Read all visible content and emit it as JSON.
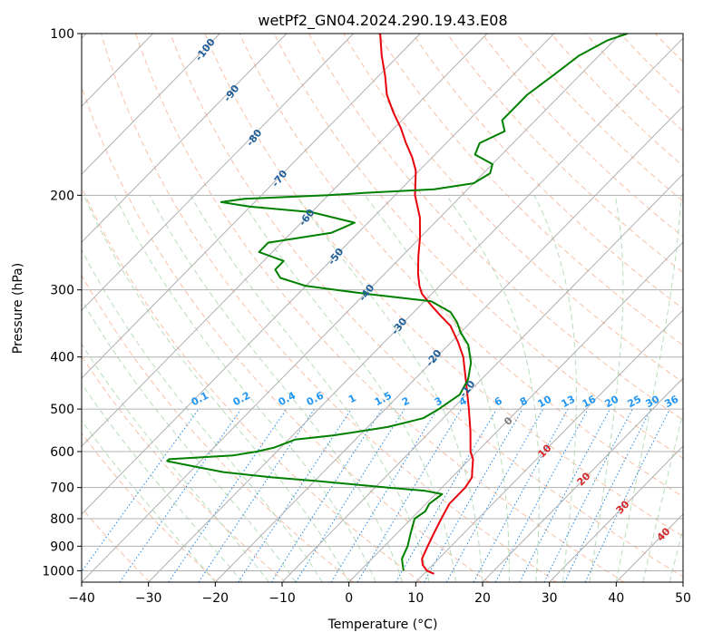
{
  "chart_data": {
    "type": "line",
    "title": "wetPf2_GN04.2024.290.19.43.E08",
    "xlabel": "Temperature (°C)",
    "ylabel": "Pressure (hPa)",
    "xlim": [
      -40,
      50
    ],
    "ylim": [
      1050,
      100
    ],
    "y_scale": "log",
    "grid": true,
    "skew_degrees_per_log10_unit": 79,
    "x_ticks": [
      -40,
      -30,
      -20,
      -10,
      0,
      10,
      20,
      30,
      40,
      50
    ],
    "x_tick_labels": [
      "−40",
      "−30",
      "−20",
      "−10",
      "0",
      "10",
      "20",
      "30",
      "40",
      "50"
    ],
    "y_ticks": [
      1000,
      900,
      800,
      700,
      600,
      500,
      400,
      300,
      200,
      100
    ],
    "y_tick_labels": [
      "1000",
      "900",
      "800",
      "700",
      "600",
      "500",
      "400",
      "300",
      "200",
      "100"
    ],
    "series": [
      {
        "role": "temperature",
        "color": "#e8000b",
        "points": [
          [
            1013,
            11.5
          ],
          [
            1000,
            10.0
          ],
          [
            975,
            8.5
          ],
          [
            950,
            7.5
          ],
          [
            900,
            6.5
          ],
          [
            850,
            5.5
          ],
          [
            800,
            4.5
          ],
          [
            750,
            3.5
          ],
          [
            720,
            3.5
          ],
          [
            700,
            3.5
          ],
          [
            670,
            3.0
          ],
          [
            650,
            2.0
          ],
          [
            620,
            0.5
          ],
          [
            600,
            -1.0
          ],
          [
            550,
            -4.0
          ],
          [
            500,
            -7.5
          ],
          [
            450,
            -11.5
          ],
          [
            400,
            -16.0
          ],
          [
            375,
            -19.0
          ],
          [
            350,
            -22.5
          ],
          [
            335,
            -25.5
          ],
          [
            320,
            -28.5
          ],
          [
            305,
            -31.5
          ],
          [
            295,
            -33.0
          ],
          [
            280,
            -35.0
          ],
          [
            260,
            -37.5
          ],
          [
            240,
            -40.0
          ],
          [
            220,
            -43.0
          ],
          [
            200,
            -47.0
          ],
          [
            180,
            -50.5
          ],
          [
            170,
            -53.0
          ],
          [
            160,
            -56.0
          ],
          [
            150,
            -59.0
          ],
          [
            140,
            -62.5
          ],
          [
            130,
            -66.0
          ],
          [
            120,
            -69.0
          ],
          [
            110,
            -72.5
          ],
          [
            100,
            -76.0
          ]
        ]
      },
      {
        "role": "dewpoint",
        "color": "#008000",
        "points": [
          [
            1000,
            6.5
          ],
          [
            975,
            5.5
          ],
          [
            950,
            4.5
          ],
          [
            900,
            3.5
          ],
          [
            850,
            2.0
          ],
          [
            800,
            0.5
          ],
          [
            775,
            1.0
          ],
          [
            750,
            0.5
          ],
          [
            720,
            1.0
          ],
          [
            710,
            -2.0
          ],
          [
            700,
            -8.0
          ],
          [
            690,
            -14.0
          ],
          [
            680,
            -20.0
          ],
          [
            670,
            -27.0
          ],
          [
            655,
            -35.0
          ],
          [
            640,
            -40.0
          ],
          [
            625,
            -45.0
          ],
          [
            620,
            -45.0
          ],
          [
            610,
            -36.0
          ],
          [
            600,
            -33.0
          ],
          [
            590,
            -31.0
          ],
          [
            570,
            -29.0
          ],
          [
            560,
            -24.0
          ],
          [
            540,
            -17.0
          ],
          [
            520,
            -13.0
          ],
          [
            500,
            -12.0
          ],
          [
            470,
            -11.0
          ],
          [
            440,
            -12.0
          ],
          [
            410,
            -14.0
          ],
          [
            380,
            -17.0
          ],
          [
            360,
            -20.0
          ],
          [
            345,
            -22.0
          ],
          [
            330,
            -24.5
          ],
          [
            315,
            -29.0
          ],
          [
            305,
            -40.0
          ],
          [
            295,
            -50.0
          ],
          [
            285,
            -55.0
          ],
          [
            275,
            -57.0
          ],
          [
            265,
            -57.0
          ],
          [
            255,
            -62.0
          ],
          [
            245,
            -62.0
          ],
          [
            235,
            -54.0
          ],
          [
            225,
            -52.0
          ],
          [
            215,
            -60.0
          ],
          [
            210,
            -70.0
          ],
          [
            206,
            -75.0
          ],
          [
            203,
            -72.0
          ],
          [
            200,
            -60.0
          ],
          [
            198,
            -55.0
          ],
          [
            195,
            -45.0
          ],
          [
            190,
            -40.0
          ],
          [
            182,
            -39.0
          ],
          [
            175,
            -40.0
          ],
          [
            168,
            -44.0
          ],
          [
            160,
            -45.0
          ],
          [
            152,
            -43.0
          ],
          [
            145,
            -45.0
          ],
          [
            130,
            -45.0
          ],
          [
            120,
            -44.0
          ],
          [
            110,
            -43.0
          ],
          [
            103,
            -41.0
          ],
          [
            100,
            -39.0
          ]
        ]
      }
    ],
    "dry_adiabat_labels": [
      "-100",
      "-90",
      "-80",
      "-70",
      "-60",
      "-50",
      "-40",
      "-30",
      "-20",
      "-10"
    ],
    "moist_adiabat_labels": [
      "0",
      "10",
      "20",
      "30",
      "40"
    ],
    "mixing_ratio_labels": [
      "0.1",
      "0.2",
      "0.4",
      "0.6",
      "1",
      "1.5",
      "2",
      "3",
      "4",
      "6",
      "8",
      "10",
      "13",
      "16",
      "20",
      "25",
      "30",
      "36"
    ],
    "colors": {
      "isotherm": "#b0b0b0",
      "isobar": "#b0b0b0",
      "dry_adiabat": "#f4a582",
      "moist_adiabat": "#a6d4a6",
      "mixing_ratio": "#1e88e5",
      "dry_adiabat_label": "#1f5f99",
      "mixing_ratio_label": "#2196f3",
      "moist_adiabat_label": "#d62728",
      "moist_zero_label": "#808080"
    }
  }
}
